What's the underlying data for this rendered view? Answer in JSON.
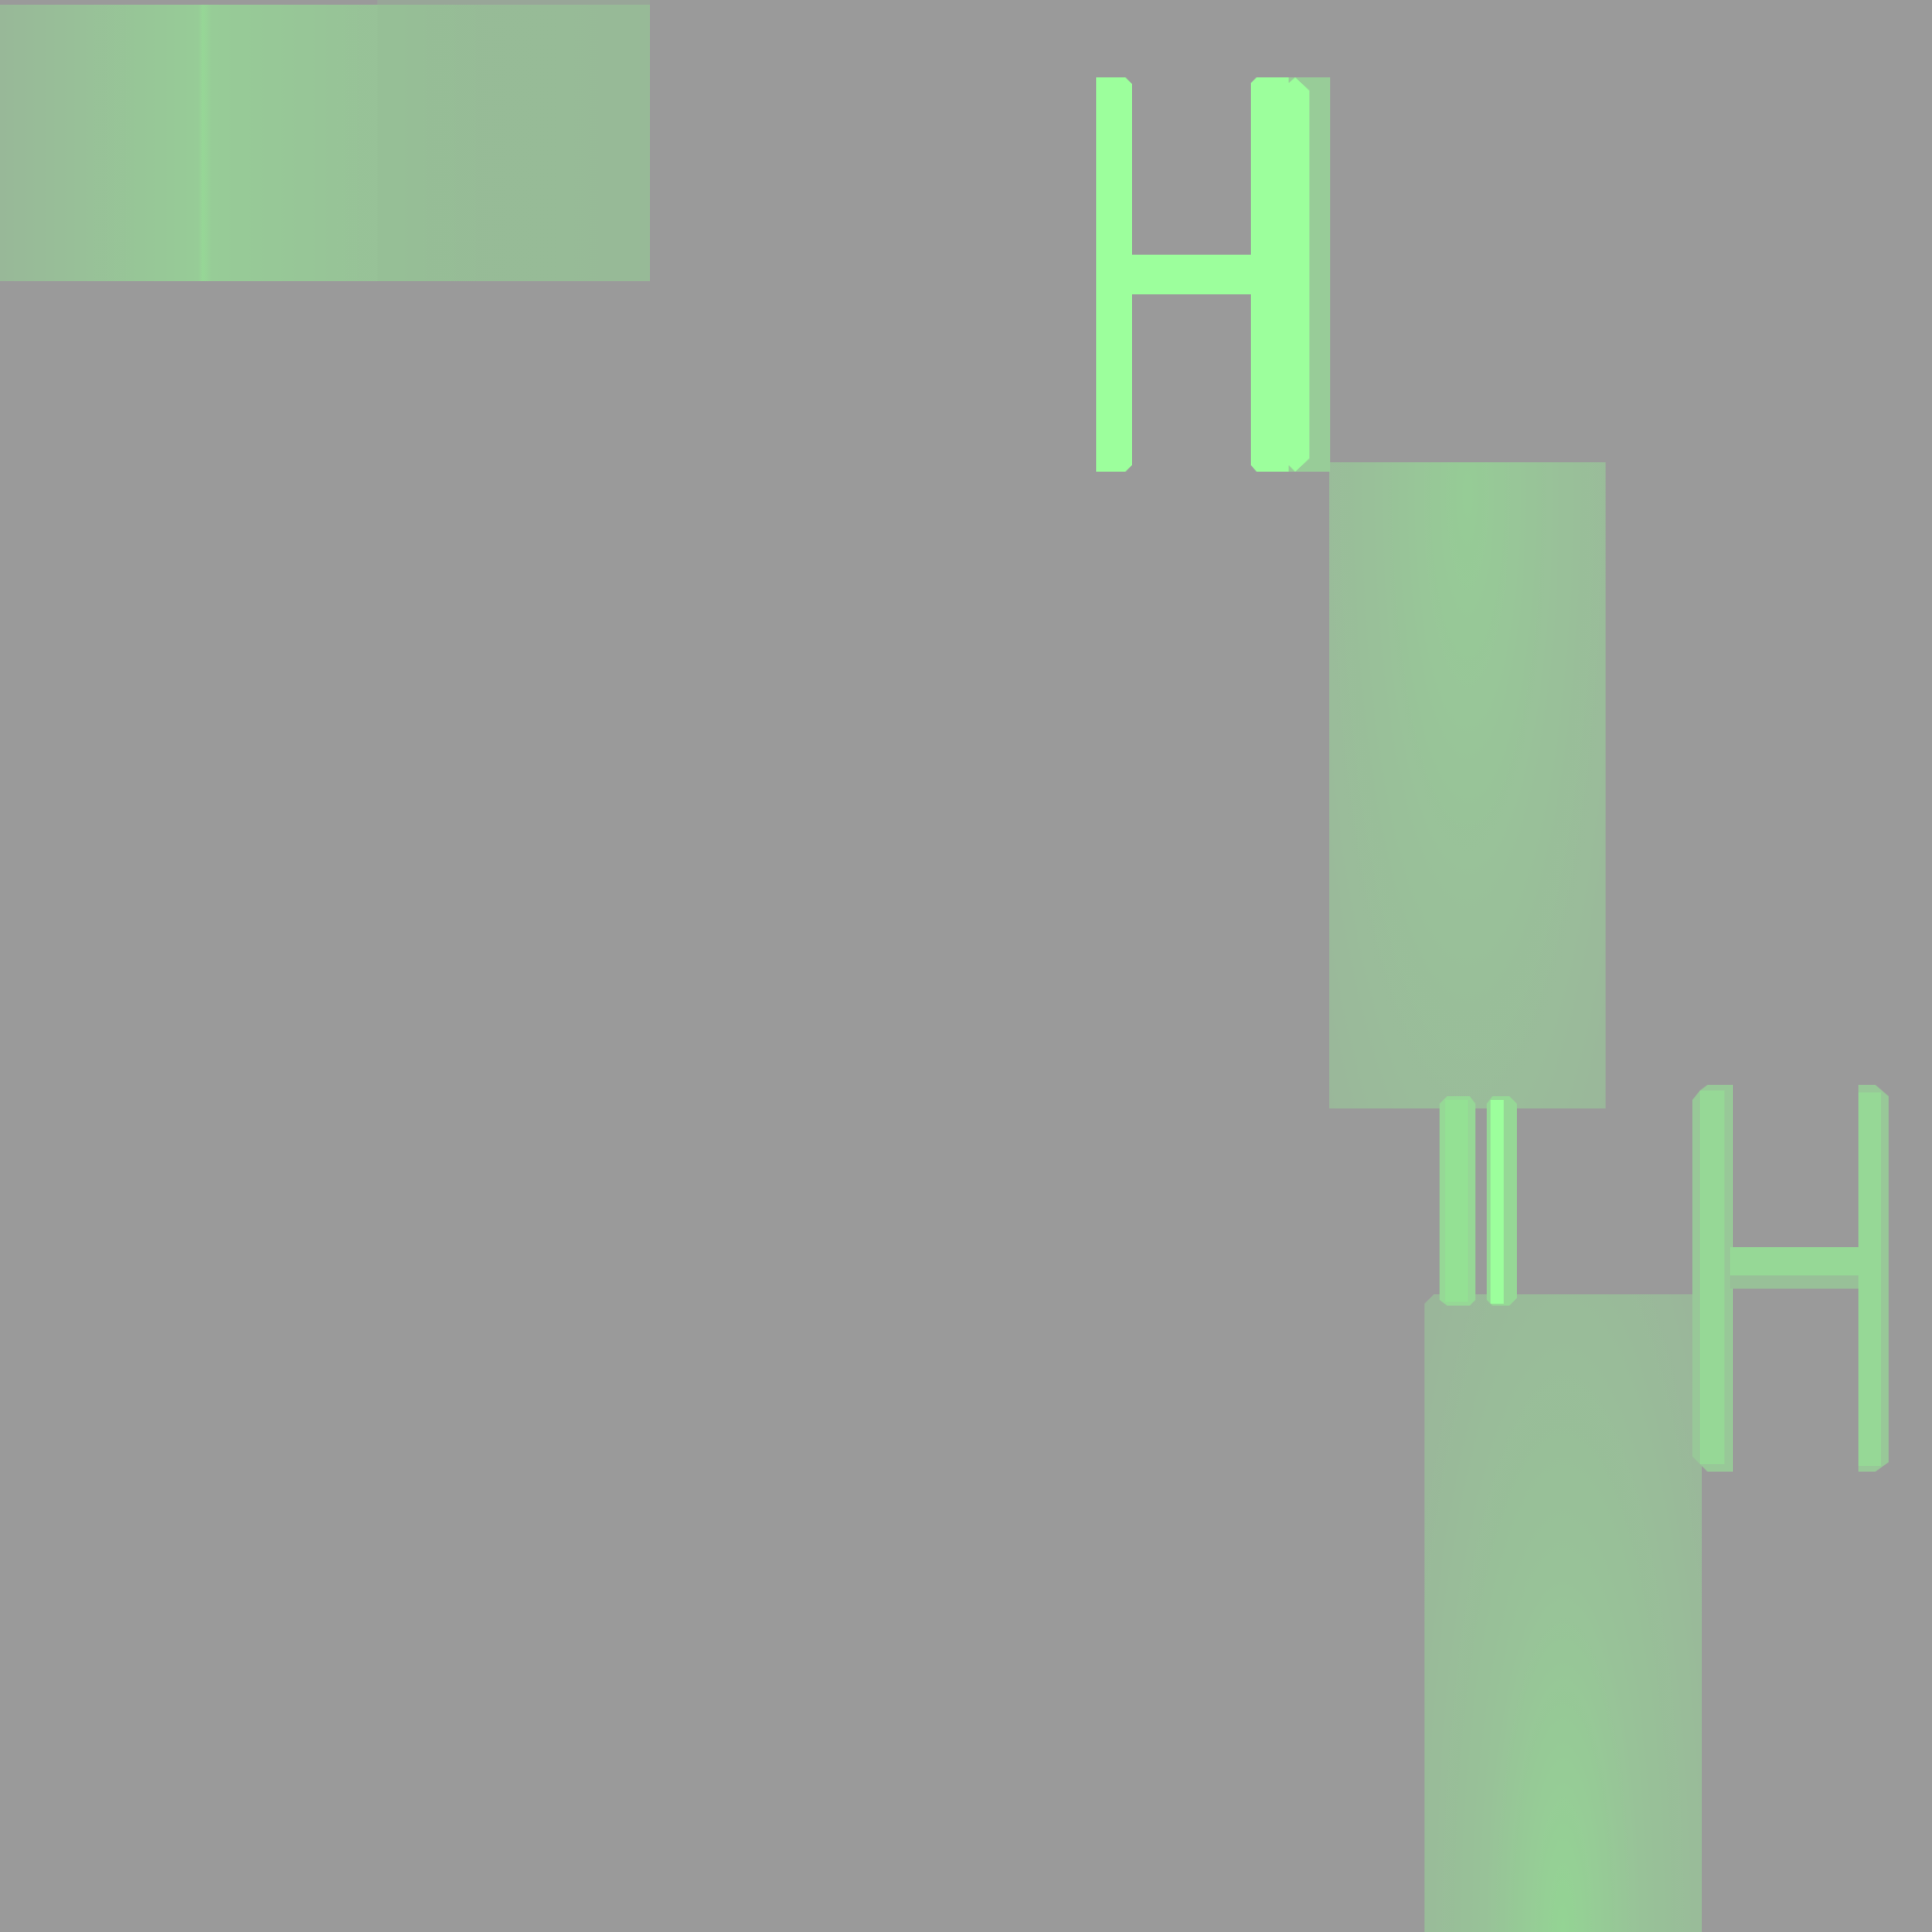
{
  "scene": {
    "description_colors": {
      "background": "#9a9a9a",
      "bright_green": "#9cff9c",
      "muted_green": "#98c698"
    },
    "glyphs": {
      "large_h": "H",
      "small_h": "H",
      "bars": "||"
    }
  }
}
